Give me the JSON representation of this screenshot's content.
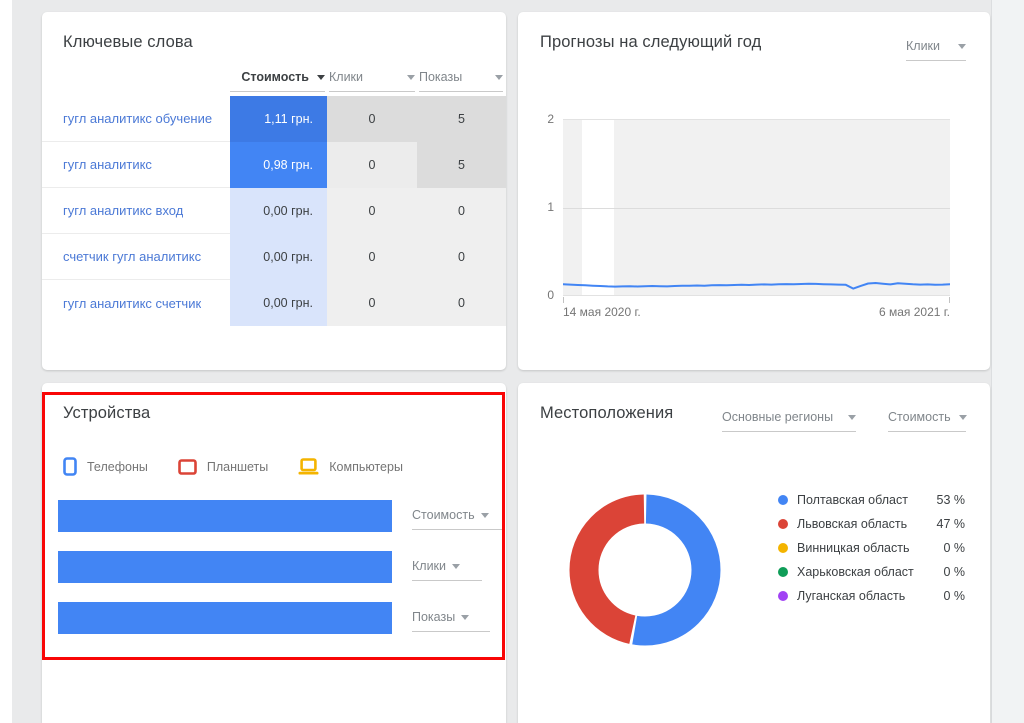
{
  "keywords_card": {
    "title": "Ключевые слова",
    "columns": [
      {
        "label": "Стоимость",
        "active": true
      },
      {
        "label": "Клики",
        "active": false
      },
      {
        "label": "Показы",
        "active": false
      }
    ],
    "rows": [
      {
        "keyword": "гугл аналитикс обучение",
        "cost": "1,11 грн.",
        "clicks": "0",
        "impressions": "5",
        "cost_bg": "#3d7ae5",
        "cost_color": "#ffffff",
        "clicks_bg": "#dcdcdc",
        "impressions_bg": "#dcdcdc"
      },
      {
        "keyword": "гугл аналитикс",
        "cost": "0,98 грн.",
        "clicks": "0",
        "impressions": "5",
        "cost_bg": "#4285f4",
        "cost_color": "#ffffff",
        "clicks_bg": "#ececec",
        "impressions_bg": "#dcdcdc"
      },
      {
        "keyword": "гугл аналитикс вход",
        "cost": "0,00 грн.",
        "clicks": "0",
        "impressions": "0",
        "cost_bg": "#d9e4fb",
        "cost_color": "#3c4043",
        "clicks_bg": "#efefef",
        "impressions_bg": "#efefef"
      },
      {
        "keyword": "счетчик гугл аналитикс",
        "cost": "0,00 грн.",
        "clicks": "0",
        "impressions": "0",
        "cost_bg": "#d9e4fb",
        "cost_color": "#3c4043",
        "clicks_bg": "#efefef",
        "impressions_bg": "#efefef"
      },
      {
        "keyword": "гугл аналитикс счетчик",
        "cost": "0,00 грн.",
        "clicks": "0",
        "impressions": "0",
        "cost_bg": "#d9e4fb",
        "cost_color": "#3c4043",
        "clicks_bg": "#efefef",
        "impressions_bg": "#efefef"
      }
    ]
  },
  "forecast_card": {
    "title": "Прогнозы на следующий год",
    "metric_select": "Клики"
  },
  "devices_card": {
    "title": "Устройства",
    "legend": [
      {
        "label": "Телефоны",
        "icon": "phone-icon",
        "color": "#4285f4"
      },
      {
        "label": "Планшеты",
        "icon": "tablet-icon",
        "color": "#db4437"
      },
      {
        "label": "Компьютеры",
        "icon": "laptop-icon",
        "color": "#f4b400"
      }
    ],
    "rows": [
      {
        "metric_select": "Стоимость"
      },
      {
        "metric_select": "Клики"
      },
      {
        "metric_select": "Показы"
      }
    ]
  },
  "locations_card": {
    "title": "Местоположения",
    "region_select": "Основные регионы",
    "metric_select": "Стоимость"
  },
  "chart_data": [
    {
      "id": "forecast-line",
      "type": "line",
      "title": "Прогнозы на следующий год",
      "legend_position": "none",
      "grid": true,
      "ylim": [
        0,
        2
      ],
      "yticks": [
        0,
        1,
        2
      ],
      "x_start_label": "14 мая 2020 г.",
      "x_end_label": "6 мая 2021 г.",
      "plot_bg": "#f1f1f1",
      "highlight_band_frac": [
        0.049,
        0.132
      ],
      "series": [
        {
          "name": "Клики",
          "color": "#4285f4",
          "values": [
            0.145,
            0.14,
            0.136,
            0.132,
            0.128,
            0.124,
            0.12,
            0.118,
            0.12,
            0.122,
            0.119,
            0.121,
            0.124,
            0.122,
            0.12,
            0.124,
            0.128,
            0.126,
            0.13,
            0.128,
            0.132,
            0.134,
            0.132,
            0.136,
            0.138,
            0.136,
            0.14,
            0.142,
            0.14,
            0.144,
            0.146,
            0.144,
            0.147,
            0.15,
            0.148,
            0.145,
            0.142,
            0.14,
            0.138,
            0.095,
            0.125,
            0.152,
            0.158,
            0.15,
            0.142,
            0.155,
            0.15,
            0.144,
            0.14,
            0.142,
            0.138,
            0.14,
            0.145
          ]
        }
      ]
    },
    {
      "id": "devices-bars",
      "type": "bar",
      "title": "Устройства",
      "categories": [
        "Стоимость",
        "Клики",
        "Показы"
      ],
      "values": [
        100,
        100,
        100
      ],
      "bar_color": "#4285f4",
      "legend": [
        "Телефоны",
        "Планшеты",
        "Компьютеры"
      ]
    },
    {
      "id": "locations-donut",
      "type": "pie",
      "title": "Местоположения",
      "legend_position": "right",
      "slices": [
        {
          "label": "Полтавская област",
          "value": 53,
          "value_label": "53 %",
          "color": "#4285f4"
        },
        {
          "label": "Львовская область",
          "value": 47,
          "value_label": "47 %",
          "color": "#db4437"
        },
        {
          "label": "Винницкая область",
          "value": 0,
          "value_label": "0 %",
          "color": "#f4b400"
        },
        {
          "label": "Харьковская област",
          "value": 0,
          "value_label": "0 %",
          "color": "#0f9d58"
        },
        {
          "label": "Луганская область",
          "value": 0,
          "value_label": "0 %",
          "color": "#a142f4"
        }
      ]
    }
  ]
}
